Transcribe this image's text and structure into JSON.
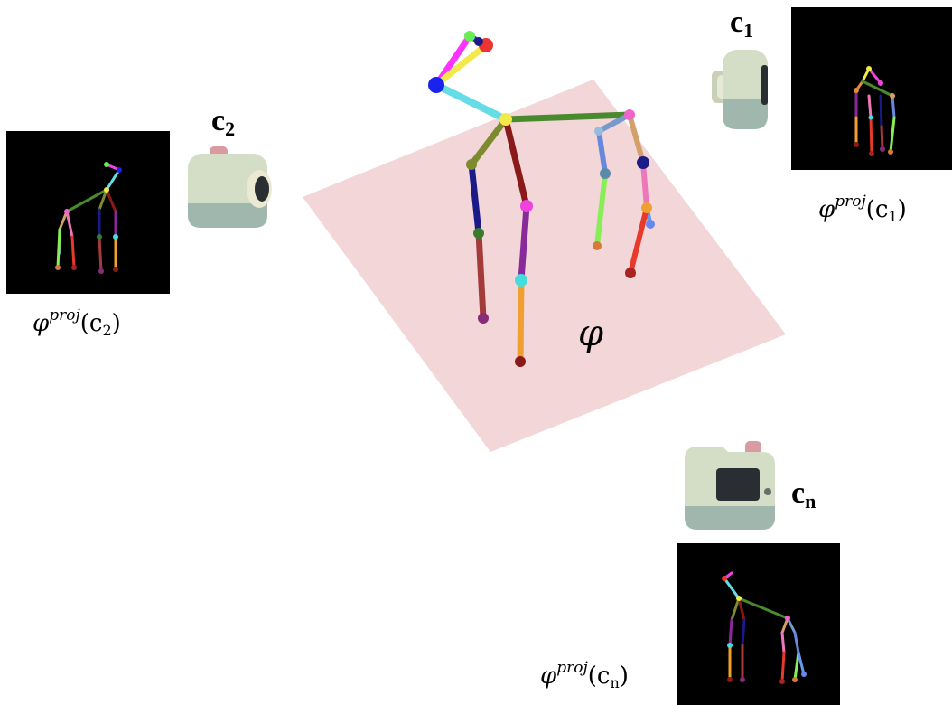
{
  "scene_symbol": "φ",
  "cameras": [
    {
      "id": "c1",
      "label": "c",
      "subscript": "1",
      "projection_label": "φ",
      "projection_sup": "proj",
      "projection_arg": "(c",
      "projection_arg_sub": "1",
      "projection_close": ")"
    },
    {
      "id": "c2",
      "label": "c",
      "subscript": "2",
      "projection_label": "φ",
      "projection_sup": "proj",
      "projection_arg": "(c",
      "projection_arg_sub": "2",
      "projection_close": ")"
    },
    {
      "id": "cn",
      "label": "c",
      "subscript": "n",
      "projection_label": "φ",
      "projection_sup": "proj",
      "projection_arg": "(c",
      "projection_arg_sub": "n",
      "projection_close": ")"
    }
  ],
  "colors": {
    "plane": "#f2d6d8",
    "camera_body": "#d4ddc6",
    "camera_base": "#9fb7ad",
    "camera_button": "#d99aa0",
    "thumbnail_bg": "#000000"
  }
}
